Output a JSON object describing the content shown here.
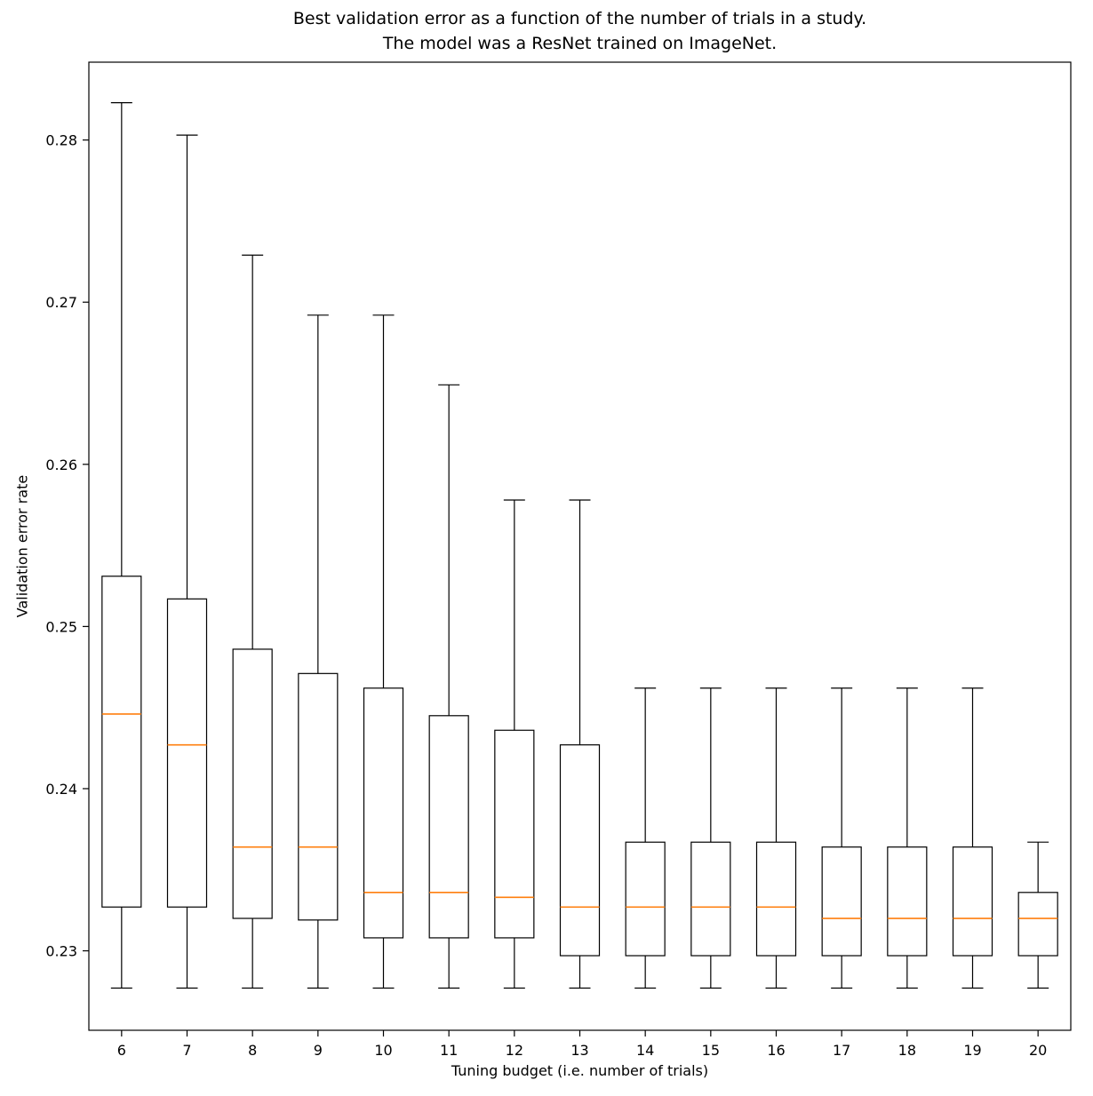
{
  "title": {
    "line1": "Best validation error as a function of the number of trials in a study.",
    "line2": "The model was a ResNet trained on ImageNet."
  },
  "chart_data": {
    "type": "boxplot",
    "title": "Best validation error as a function of the number of trials in a study.\nThe model was a ResNet trained on ImageNet.",
    "xlabel": "Tuning budget (i.e. number of trials)",
    "ylabel": "Validation error rate",
    "categories": [
      6,
      7,
      8,
      9,
      10,
      11,
      12,
      13,
      14,
      15,
      16,
      17,
      18,
      19,
      20
    ],
    "series": [
      {
        "budget": 6,
        "whisker_low": 0.2277,
        "q1": 0.2327,
        "median": 0.2446,
        "q3": 0.2531,
        "whisker_high": 0.2823
      },
      {
        "budget": 7,
        "whisker_low": 0.2277,
        "q1": 0.2327,
        "median": 0.2427,
        "q3": 0.2517,
        "whisker_high": 0.2803
      },
      {
        "budget": 8,
        "whisker_low": 0.2277,
        "q1": 0.232,
        "median": 0.2364,
        "q3": 0.2486,
        "whisker_high": 0.2729
      },
      {
        "budget": 9,
        "whisker_low": 0.2277,
        "q1": 0.2319,
        "median": 0.2364,
        "q3": 0.2471,
        "whisker_high": 0.2692
      },
      {
        "budget": 10,
        "whisker_low": 0.2277,
        "q1": 0.2308,
        "median": 0.2336,
        "q3": 0.2462,
        "whisker_high": 0.2692
      },
      {
        "budget": 11,
        "whisker_low": 0.2277,
        "q1": 0.2308,
        "median": 0.2336,
        "q3": 0.2445,
        "whisker_high": 0.2649
      },
      {
        "budget": 12,
        "whisker_low": 0.2277,
        "q1": 0.2308,
        "median": 0.2333,
        "q3": 0.2436,
        "whisker_high": 0.2578
      },
      {
        "budget": 13,
        "whisker_low": 0.2277,
        "q1": 0.2297,
        "median": 0.2327,
        "q3": 0.2427,
        "whisker_high": 0.2578
      },
      {
        "budget": 14,
        "whisker_low": 0.2277,
        "q1": 0.2297,
        "median": 0.2327,
        "q3": 0.2367,
        "whisker_high": 0.2462
      },
      {
        "budget": 15,
        "whisker_low": 0.2277,
        "q1": 0.2297,
        "median": 0.2327,
        "q3": 0.2367,
        "whisker_high": 0.2462
      },
      {
        "budget": 16,
        "whisker_low": 0.2277,
        "q1": 0.2297,
        "median": 0.2327,
        "q3": 0.2367,
        "whisker_high": 0.2462
      },
      {
        "budget": 17,
        "whisker_low": 0.2277,
        "q1": 0.2297,
        "median": 0.232,
        "q3": 0.2364,
        "whisker_high": 0.2462
      },
      {
        "budget": 18,
        "whisker_low": 0.2277,
        "q1": 0.2297,
        "median": 0.232,
        "q3": 0.2364,
        "whisker_high": 0.2462
      },
      {
        "budget": 19,
        "whisker_low": 0.2277,
        "q1": 0.2297,
        "median": 0.232,
        "q3": 0.2364,
        "whisker_high": 0.2462
      },
      {
        "budget": 20,
        "whisker_low": 0.2277,
        "q1": 0.2297,
        "median": 0.232,
        "q3": 0.2336,
        "whisker_high": 0.2367
      }
    ],
    "yticks": [
      0.23,
      0.24,
      0.25,
      0.26,
      0.27,
      0.28
    ],
    "ylim": [
      0.2251,
      0.2848
    ],
    "grid": false,
    "legend": "none",
    "colors": {
      "box_outline": "#000000",
      "median_line": "#ff7f0e",
      "background": "#ffffff"
    }
  }
}
